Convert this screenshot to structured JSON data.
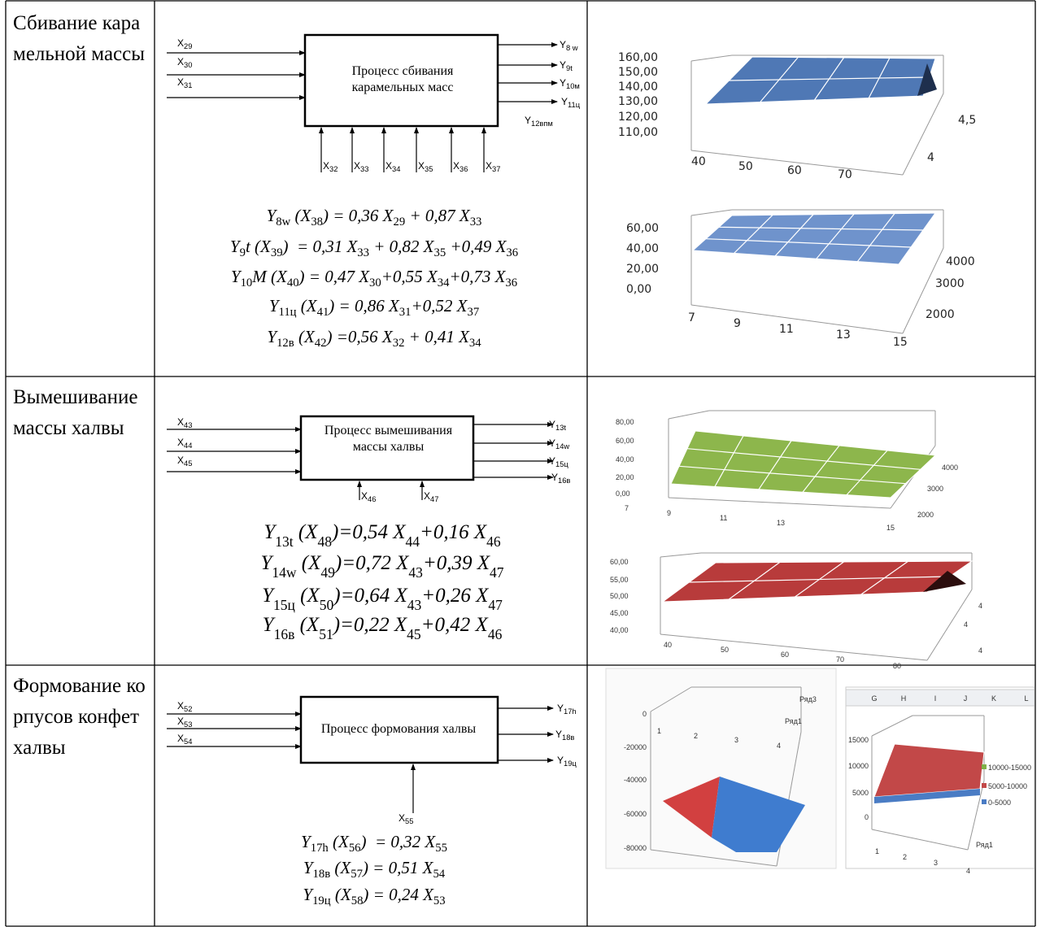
{
  "table": {
    "rows": [
      {
        "name": "Сбивание карамельной массы",
        "process": "Процесс сбивания карамельных масс",
        "inputs": [
          [
            "X",
            "29"
          ],
          [
            "X",
            "30"
          ],
          [
            "X",
            "31"
          ]
        ],
        "outputs": [
          [
            "Y",
            "8 w"
          ],
          [
            "Y",
            "9t"
          ],
          [
            "Y",
            "10м"
          ],
          [
            "Y",
            "11ц"
          ],
          [
            "Y",
            "12впм"
          ]
        ],
        "bottom_inputs": [
          [
            "X",
            "32"
          ],
          [
            "X",
            "33"
          ],
          [
            "X",
            "34"
          ],
          [
            "X",
            "35"
          ],
          [
            "X",
            "36"
          ],
          [
            "X",
            "37"
          ]
        ],
        "equations": [
          [
            [
              "Y",
              "8w"
            ],
            [
              " (X",
              "38"
            ],
            [
              ") = 0,36 X",
              "29"
            ],
            [
              " + 0,87 X",
              "33"
            ]
          ],
          [
            [
              "Y",
              "9"
            ],
            [
              "t (X",
              "39"
            ],
            [
              ")  = 0,31 X",
              "33"
            ],
            [
              " + 0,82 X",
              "35"
            ],
            [
              " +0,49 X",
              "36"
            ]
          ],
          [
            [
              "Y",
              "10"
            ],
            [
              "M (X",
              "40"
            ],
            [
              ") = 0,47 X",
              "30"
            ],
            [
              "+0,55 X",
              "34"
            ],
            [
              "+0,73 X",
              "36"
            ]
          ],
          [
            [
              "Y",
              "11ц"
            ],
            [
              " (X",
              "41"
            ],
            [
              ") = 0,86 X",
              "31"
            ],
            [
              "+0,52 X",
              "37"
            ]
          ],
          [
            [
              "Y",
              "12в"
            ],
            [
              " (X",
              "42"
            ],
            [
              ") =0,56 X",
              "32"
            ],
            [
              " + 0,41 X",
              "34"
            ]
          ]
        ],
        "charts": [
          {
            "zlabels": [
              "160,00",
              "150,00",
              "140,00",
              "130,00",
              "120,00",
              "110,00"
            ],
            "xlabels": [
              "40",
              "50",
              "60",
              "70"
            ],
            "depth": [
              "4,5",
              "4"
            ]
          },
          {
            "zlabels": [
              "60,00",
              "40,00",
              "20,00",
              "0,00"
            ],
            "xlabels": [
              "7",
              "9",
              "11",
              "13",
              "15"
            ],
            "depth": [
              "4000",
              "3000",
              "2000"
            ]
          }
        ]
      },
      {
        "name": "Вымешивание массы халвы",
        "process": "Процесс вымешивания массы халвы",
        "inputs": [
          [
            "X",
            "43"
          ],
          [
            "X",
            "44"
          ],
          [
            "X",
            "45"
          ]
        ],
        "outputs": [
          [
            "Y",
            "13t"
          ],
          [
            "Y",
            "14w"
          ],
          [
            "Y",
            "15ц"
          ],
          [
            "Y",
            "16в"
          ]
        ],
        "bottom_inputs": [
          [
            "X",
            "46"
          ],
          [
            "X",
            "47"
          ]
        ],
        "equations": [
          [
            [
              "Y",
              "13t"
            ],
            [
              " (X",
              "48"
            ],
            [
              ")=0,54 X",
              "44"
            ],
            [
              "+0,16 X",
              "46"
            ]
          ],
          [
            [
              "Y",
              "14w"
            ],
            [
              " (X",
              "49"
            ],
            [
              ")=0,72 X",
              "43"
            ],
            [
              "+0,39 X",
              "47"
            ]
          ],
          [
            [
              "Y",
              "15ц"
            ],
            [
              " (X",
              "50"
            ],
            [
              ")=0,64 X",
              "43"
            ],
            [
              "+0,26 X",
              "47"
            ]
          ],
          [
            [
              "Y",
              "16в"
            ],
            [
              " (X",
              "51"
            ],
            [
              ")=0,22 X",
              "45"
            ],
            [
              "+0,42 X",
              "46"
            ]
          ]
        ],
        "charts": [
          {
            "zlabels": [
              "80,00",
              "60,00",
              "40,00",
              "20,00",
              "0,00"
            ],
            "xlabels": [
              "7",
              "9",
              "11",
              "13",
              "15"
            ],
            "depth": [
              "4000",
              "3000",
              "2000"
            ]
          },
          {
            "zlabels": [
              "60,00",
              "55,00",
              "50,00",
              "45,00",
              "40,00"
            ],
            "xlabels": [
              "40",
              "50",
              "60",
              "70",
              "80"
            ],
            "depth": [
              "4",
              "4",
              "4"
            ]
          }
        ]
      },
      {
        "name": "Формование корпусов конфет халвы",
        "process": "Процесс формования халвы",
        "inputs": [
          [
            "X",
            "52"
          ],
          [
            "X",
            "53"
          ],
          [
            "X",
            "54"
          ]
        ],
        "outputs": [
          [
            "Y",
            "17h"
          ],
          [
            "Y",
            "18в"
          ],
          [
            "Y",
            "19ц"
          ]
        ],
        "bottom_inputs": [
          [
            "X",
            "55"
          ]
        ],
        "equations": [
          [
            [
              "Y",
              "17h"
            ],
            [
              " (X",
              "56"
            ],
            [
              ")  = 0,32 X",
              "55"
            ]
          ],
          [
            [
              "Y",
              "18в"
            ],
            [
              " (X",
              "57"
            ],
            [
              ") = 0,51 X",
              "54"
            ]
          ],
          [
            [
              "Y",
              "19ц"
            ],
            [
              " (X",
              "58"
            ],
            [
              ") = 0,24 X",
              "53"
            ]
          ]
        ],
        "charts": [
          {
            "zlabels": [
              "0",
              "-20000",
              "-40000",
              "-60000",
              "-80000"
            ],
            "xlabels": [
              "1",
              "2",
              "3",
              "4"
            ],
            "depth": [
              "Ряд3",
              "Ряд1"
            ]
          },
          {
            "columns": [
              "G",
              "H",
              "I",
              "J",
              "K",
              "L"
            ],
            "zlabels": [
              "15000",
              "10000",
              "5000",
              "0"
            ],
            "xlabels": [
              "1",
              "2",
              "3",
              "4"
            ],
            "legend": [
              "10000-15000",
              "5000-10000",
              "0-5000"
            ],
            "depth": [
              "Ряд1"
            ]
          }
        ]
      }
    ]
  }
}
